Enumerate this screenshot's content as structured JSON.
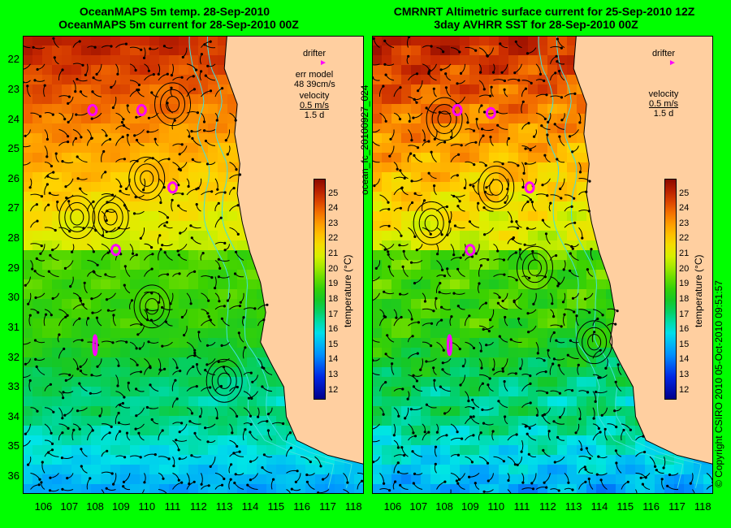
{
  "left_panel": {
    "title_line1": "OceanMAPS 5m temp. 28-Sep-2010",
    "title_line2": "OceanMAPS 5m current for 28-Sep-2010 00Z",
    "legend": {
      "drifter_label": "drifter",
      "model_label": "err model",
      "model_value": "48 39cm/s",
      "velocity_label": "velocity",
      "velocity_scale": "0.5 m/s",
      "velocity_time": "1.5 d"
    }
  },
  "right_panel": {
    "title_line1": "CMRNRT Altimetric surface current for 25-Sep-2010 12Z",
    "title_line2": "3day AVHRR SST for 28-Sep-2010 00Z",
    "legend": {
      "drifter_label": "drifter",
      "velocity_label": "velocity",
      "velocity_scale": "0.5 m/s",
      "velocity_time": "1.5 d"
    }
  },
  "file_label": "ocean_fc_20100927_024",
  "copyright": "© Copyright CSIRO 2010   05-Oct-2010 09:51:57",
  "colorbar": {
    "title": "temperature (°C)",
    "ticks": [
      "25",
      "24",
      "23",
      "22",
      "21",
      "20",
      "19",
      "18",
      "17",
      "16",
      "15",
      "14",
      "13",
      "12"
    ],
    "range": [
      11.5,
      26
    ]
  },
  "axes": {
    "lat_ticks": [
      "22",
      "23",
      "24",
      "25",
      "26",
      "27",
      "28",
      "29",
      "30",
      "31",
      "32",
      "33",
      "34",
      "35",
      "36"
    ],
    "lon_ticks": [
      "106",
      "107",
      "108",
      "109",
      "110",
      "111",
      "112",
      "113",
      "114",
      "115",
      "116",
      "117",
      "118"
    ],
    "lat_range": [
      21.2,
      36.6
    ],
    "lon_range": [
      105.2,
      118.4
    ]
  },
  "colors": {
    "background": "#00ff00",
    "land": "#ffcfa0",
    "drifter": "#ff00ff",
    "isobath": "#40e0e0"
  }
}
